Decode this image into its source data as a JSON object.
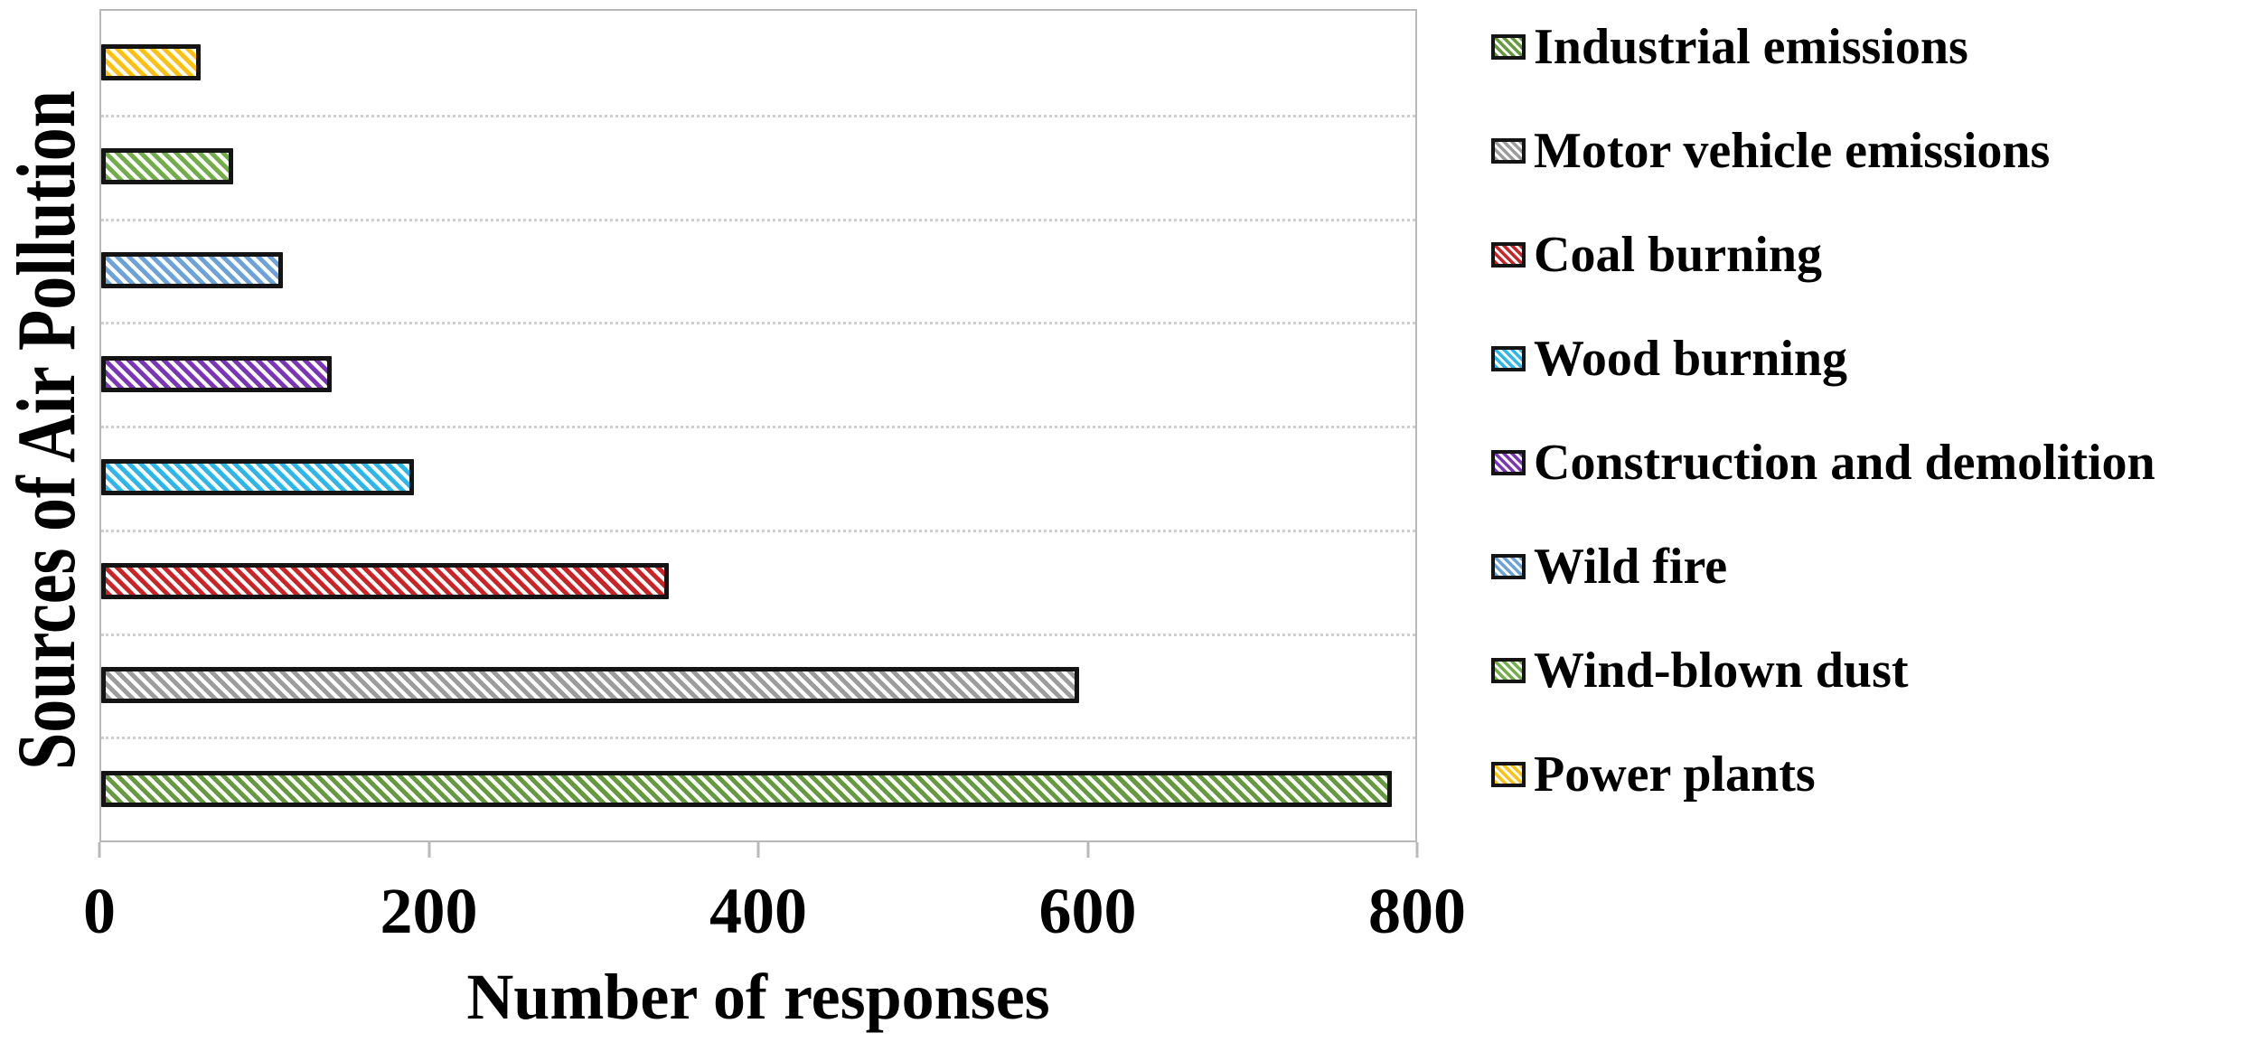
{
  "chart_data": {
    "type": "bar",
    "orientation": "horizontal",
    "title": "",
    "xlabel": "Number of responses",
    "ylabel": "Sources of Air Pollution",
    "xlim": [
      0,
      800
    ],
    "xticks": [
      0,
      200,
      400,
      600,
      800
    ],
    "grid": "horizontal dotted lines between category slots",
    "legend_position": "right",
    "hatch": "diagonal-stripes",
    "categories": [
      "Industrial emissions",
      "Motor vehicle emissions",
      "Coal burning",
      "Wood burning",
      "Construction and demolition",
      "Wild fire",
      "Wind-blown dust",
      "Power plants"
    ],
    "values": [
      780,
      590,
      340,
      185,
      135,
      105,
      75,
      55
    ],
    "colors": [
      "#669a3e",
      "#9c9c9c",
      "#cc2327",
      "#2cb7ec",
      "#7c35b9",
      "#6ba2da",
      "#71ae4a",
      "#fec111"
    ],
    "bar_order_note": "bars drawn bottom-to-top in the order of categories; top bar is Power plants",
    "bar_outline_color": "#141414",
    "axis_color": "#b9b9b9",
    "gridline_color": "#cfcfcf"
  }
}
